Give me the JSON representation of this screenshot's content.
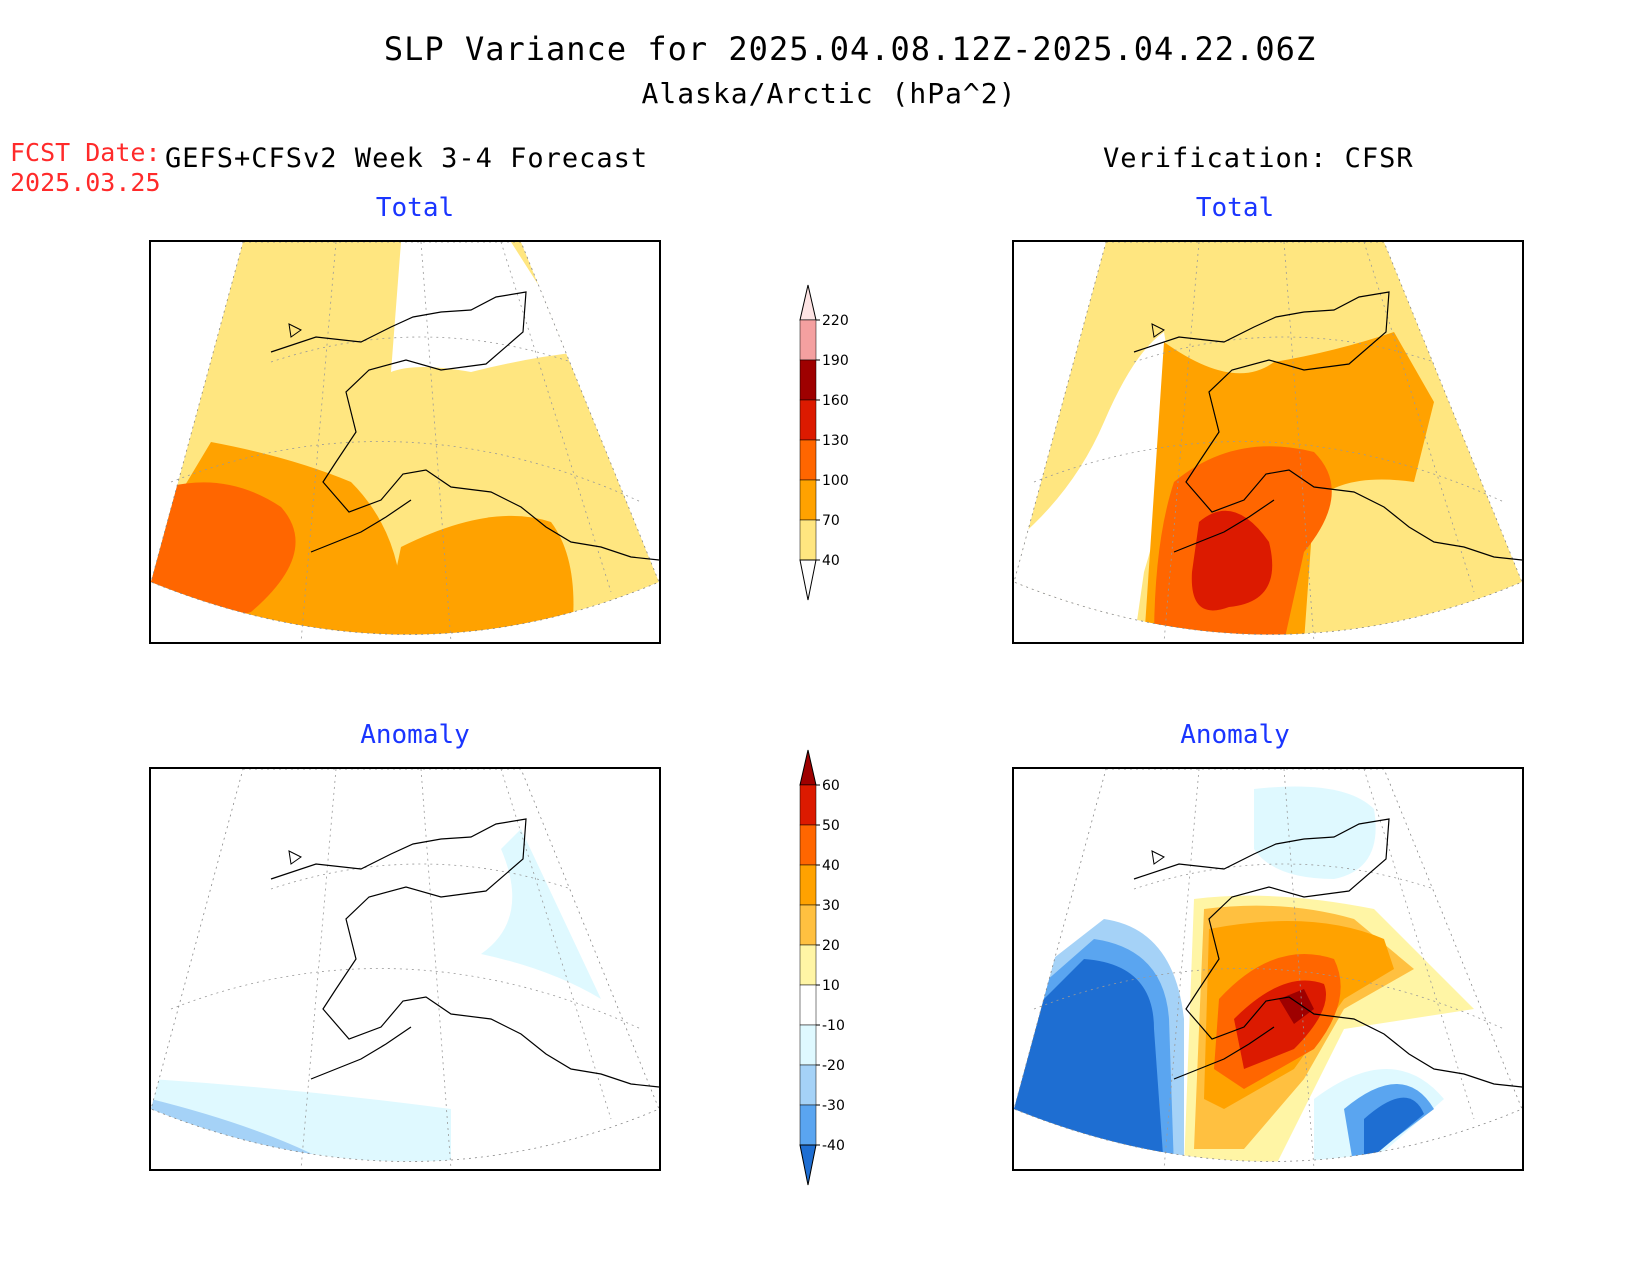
{
  "header": {
    "title": "SLP Variance for 2025.04.08.12Z-2025.04.22.06Z",
    "subtitle": "Alaska/Arctic (hPa^2)",
    "fcst_label": "FCST Date:",
    "fcst_date": "2025.03.25",
    "left_heading": "GEFS+CFSv2 Week 3-4 Forecast",
    "right_heading": "Verification: CFSR"
  },
  "panels": {
    "fc_total": {
      "title": "Total"
    },
    "vf_total": {
      "title": "Total"
    },
    "fc_anom": {
      "title": "Anomaly"
    },
    "vf_anom": {
      "title": "Anomaly"
    }
  },
  "colorbars": {
    "total": {
      "labels": [
        "220",
        "190",
        "160",
        "130",
        "100",
        "70",
        "40"
      ],
      "colors": [
        "#fde3e3",
        "#f4a0a0",
        "#9e0000",
        "#dc1a00",
        "#ff6600",
        "#ffa200",
        "#ffe680"
      ]
    },
    "anomaly": {
      "labels": [
        "60",
        "50",
        "40",
        "30",
        "20",
        "10",
        "-10",
        "-20",
        "-30",
        "-40"
      ],
      "colors": [
        "#9e0000",
        "#dc1a00",
        "#ff6600",
        "#ffa200",
        "#ffc040",
        "#fff5a5",
        "#ffffff",
        "#dff9ff",
        "#a5d2f7",
        "#5aa5f0",
        "#1e6ed2"
      ]
    }
  }
}
